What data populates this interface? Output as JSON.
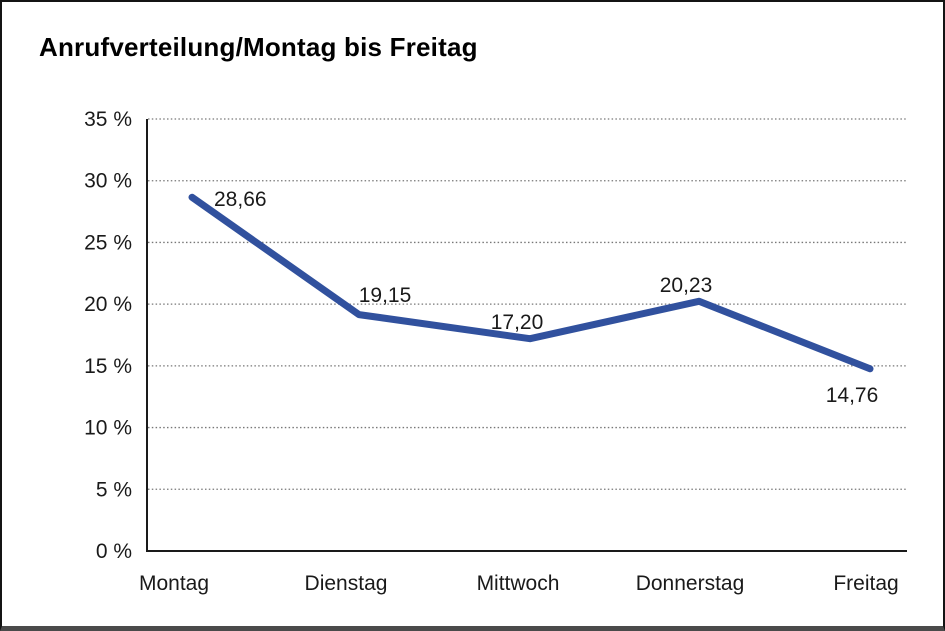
{
  "chart_data": {
    "type": "line",
    "title": "Anrufverteilung/Montag bis Freitag",
    "categories": [
      "Montag",
      "Dienstag",
      "Mittwoch",
      "Donnerstag",
      "Freitag"
    ],
    "values": [
      28.66,
      19.15,
      17.2,
      20.23,
      14.76
    ],
    "data_labels": [
      "28,66",
      "19,15",
      "17,20",
      "20,23",
      "14,76"
    ],
    "y_tick_labels": [
      "0 %",
      "5 %",
      "10 %",
      "15 %",
      "20 %",
      "25 %",
      "30 %",
      "35 %"
    ],
    "ylabel": "",
    "xlabel": "",
    "ylim": [
      0,
      35
    ],
    "y_step": 5,
    "grid": "horizontal-dotted",
    "legend_position": "none",
    "line_color": "#31519E",
    "axis_color": "#1a1a1a",
    "grid_color": "#777777",
    "text_color": "#1a1a1a"
  }
}
